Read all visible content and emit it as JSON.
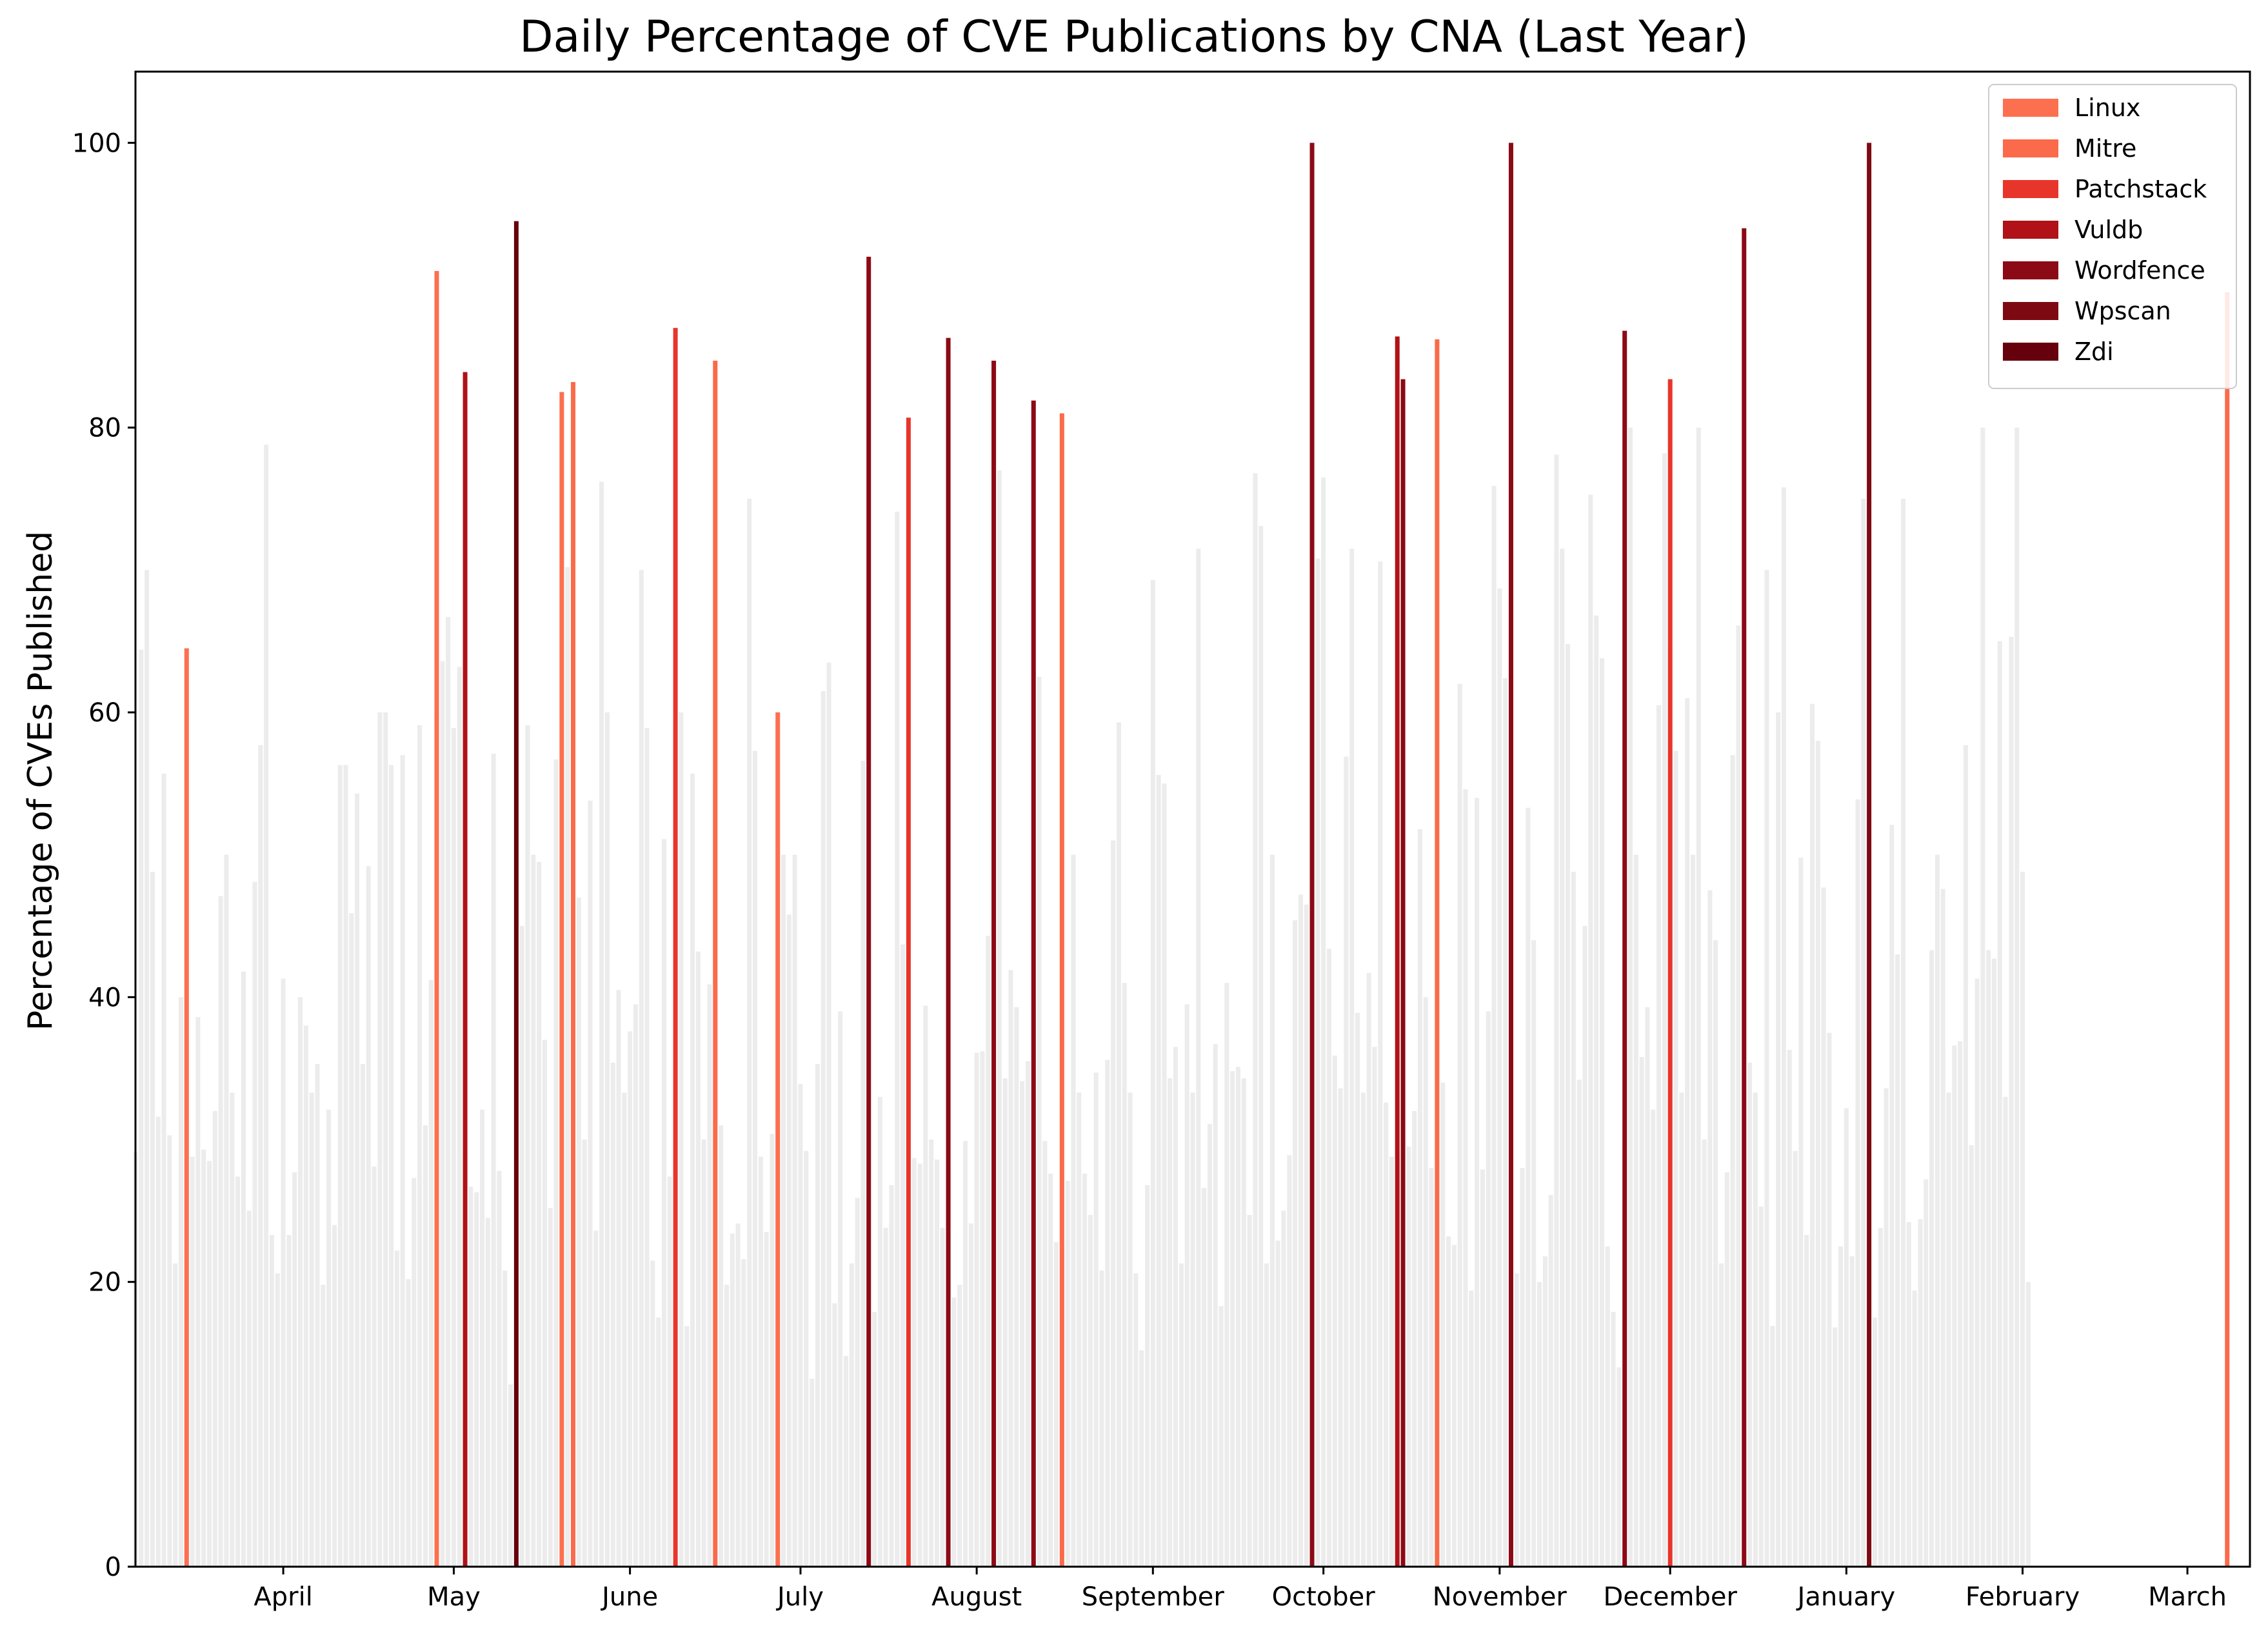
{
  "chart_data": {
    "type": "bar",
    "title": "Daily Percentage of CVE Publications by CNA (Last Year)",
    "xlabel": "",
    "ylabel": "Percentage of CVEs Published",
    "ylim": [
      0,
      105
    ],
    "yticks": [
      0,
      20,
      40,
      60,
      80,
      100
    ],
    "x_start": "2023-03-06",
    "x_end": "2024-03-12",
    "month_ticks": [
      {
        "label": "April",
        "date": "2023-04-01"
      },
      {
        "label": "May",
        "date": "2023-05-01"
      },
      {
        "label": "June",
        "date": "2023-06-01"
      },
      {
        "label": "July",
        "date": "2023-07-01"
      },
      {
        "label": "August",
        "date": "2023-08-01"
      },
      {
        "label": "September",
        "date": "2023-09-01"
      },
      {
        "label": "October",
        "date": "2023-10-01"
      },
      {
        "label": "November",
        "date": "2023-11-01"
      },
      {
        "label": "December",
        "date": "2023-12-01"
      },
      {
        "label": "January",
        "date": "2024-01-01"
      },
      {
        "label": "February",
        "date": "2024-02-01"
      },
      {
        "label": "March",
        "date": "2024-03-01"
      }
    ],
    "legend_position": "top-right",
    "grid": false,
    "background_color": "#ececec",
    "series": [
      {
        "name": "Linux",
        "color": "#fc7050",
        "points": [
          {
            "date": "2023-03-15",
            "value": 64.5
          },
          {
            "date": "2023-04-28",
            "value": 91
          },
          {
            "date": "2023-05-20",
            "value": 82.5
          },
          {
            "date": "2023-06-27",
            "value": 60
          }
        ]
      },
      {
        "name": "Mitre",
        "color": "#fb6a4a",
        "points": [
          {
            "date": "2023-05-22",
            "value": 83.2
          },
          {
            "date": "2023-06-16",
            "value": 84.7
          },
          {
            "date": "2023-08-16",
            "value": 81
          },
          {
            "date": "2023-10-21",
            "value": 86.2
          },
          {
            "date": "2024-03-08",
            "value": 89.5
          }
        ]
      },
      {
        "name": "Patchstack",
        "color": "#e8352b",
        "points": [
          {
            "date": "2023-06-09",
            "value": 87
          },
          {
            "date": "2023-07-20",
            "value": 80.7
          },
          {
            "date": "2023-12-01",
            "value": 83.4
          }
        ]
      },
      {
        "name": "Vuldb",
        "color": "#b01217",
        "points": [
          {
            "date": "2023-05-03",
            "value": 83.9
          },
          {
            "date": "2023-10-14",
            "value": 86.4
          }
        ]
      },
      {
        "name": "Wordfence",
        "color": "#8c0a15",
        "points": [
          {
            "date": "2023-07-13",
            "value": 92
          },
          {
            "date": "2023-07-27",
            "value": 86.3
          },
          {
            "date": "2023-08-04",
            "value": 84.7
          },
          {
            "date": "2023-08-11",
            "value": 81.9
          },
          {
            "date": "2023-09-29",
            "value": 100
          },
          {
            "date": "2023-10-15",
            "value": 83.4
          },
          {
            "date": "2023-11-03",
            "value": 100
          },
          {
            "date": "2023-11-23",
            "value": 86.8
          },
          {
            "date": "2023-12-14",
            "value": 94
          }
        ]
      },
      {
        "name": "Wpscan",
        "color": "#7d0a12",
        "points": [
          {
            "date": "2024-01-05",
            "value": 100
          }
        ]
      },
      {
        "name": "Zdi",
        "color": "#67000d",
        "points": [
          {
            "date": "2023-05-12",
            "value": 94.5
          }
        ]
      }
    ],
    "other_days_values": [
      29.1,
      64.4,
      70,
      48.8,
      31.6,
      55.7,
      30.3,
      21.3,
      40,
      64.5,
      28.8,
      38.6,
      29.3,
      28.5,
      32,
      47.1,
      50,
      33.3,
      27.4,
      41.8,
      25,
      48.1,
      57.7,
      78.8,
      23.3,
      20.6,
      41.3,
      23.3,
      27.7,
      40,
      38,
      33.3,
      35.3,
      19.8,
      32.1,
      24,
      56.3,
      56.3,
      45.9,
      54.3,
      35.3,
      49.2,
      28.1,
      60,
      60,
      56.3,
      22.2,
      57,
      20.2,
      27.3,
      59.1,
      31,
      41.2,
      60,
      63.6,
      66.7,
      58.9,
      63.2,
      29.1,
      26.7,
      26.3,
      32.1,
      24.5,
      57.1,
      27.8,
      20.8,
      12.8,
      39.5,
      45,
      59.1,
      50,
      49.5,
      37,
      25.2,
      56.7,
      50,
      70.2,
      17.8,
      47,
      30,
      53.8,
      23.6,
      76.2,
      60,
      35.4,
      40.5,
      33.3,
      37.6,
      39.5,
      70,
      58.9,
      21.5,
      17.5,
      51.1,
      27.4,
      59.3,
      60,
      16.9,
      55.7,
      43.2,
      30,
      40.9,
      55.5,
      31,
      19.8,
      23.4,
      24.1,
      21.6,
      75,
      57.3,
      28.8,
      23.5,
      30.4,
      31.6,
      50,
      45.8,
      50,
      33.9,
      29.2,
      13.2,
      35.3,
      61.5,
      63.5,
      18.5,
      39,
      14.8,
      21.3,
      25.9,
      56.6,
      44,
      17.9,
      33,
      23.8,
      26.8,
      74.1,
      43.7,
      42.5,
      28.7,
      28.3,
      39.4,
      30,
      28.6,
      23.8,
      27.9,
      18.9,
      19.8,
      29.9,
      24.1,
      36.1,
      36.2,
      44.3,
      26.7,
      77,
      34.3,
      41.9,
      39.3,
      34.1,
      35.5,
      39.3,
      62.5,
      29.9,
      27.6,
      22.8,
      33.3,
      27.1,
      50,
      33.3,
      27.6,
      24.7,
      34.7,
      20.8,
      35.6,
      51,
      59.3,
      41,
      33.3,
      20.6,
      15.2,
      26.8,
      69.3,
      55.6,
      55,
      34.3,
      36.5,
      21.3,
      39.5,
      33.3,
      71.5,
      26.6,
      31.1,
      36.7,
      18.3,
      41,
      34.8,
      35.1,
      34.3,
      24.7,
      76.8,
      73.1,
      21.3,
      50,
      22.9,
      25,
      28.9,
      45.4,
      47.2,
      46.5,
      33.9,
      70.8,
      76.5,
      43.4,
      35.9,
      33.6,
      56.9,
      71.5,
      38.9,
      33.3,
      41.7,
      36.5,
      70.6,
      32.6,
      28.8,
      29.2,
      27,
      29.5,
      32,
      51.8,
      40,
      28,
      26.8,
      34,
      23.2,
      22.6,
      62,
      54.6,
      19.4,
      54,
      27.9,
      39,
      75.9,
      68.7,
      62.4,
      27.4,
      20.6,
      28,
      53.3,
      44,
      20,
      21.8,
      26.1,
      78.1,
      71.5,
      64.8,
      48.8,
      34.2,
      45,
      75.3,
      66.8,
      63.8,
      22.5,
      17.9,
      14,
      20.3,
      80,
      50,
      35.8,
      39.3,
      32.1,
      60.5,
      78.2,
      64.7,
      57.3,
      33.3,
      61,
      50,
      80,
      30,
      47.5,
      44,
      21.3,
      27.7,
      57,
      66.1,
      53.8,
      35.4,
      33.3,
      25.3,
      70,
      16.9,
      60,
      75.8,
      36.3,
      29.2,
      49.8,
      23.3,
      60.6,
      58,
      47.7,
      37.5,
      16.8,
      22.5,
      32.2,
      21.8,
      53.9,
      75,
      37.4,
      17.5,
      23.8,
      33.6,
      52.1,
      43,
      75,
      24.2,
      19.4,
      24.4,
      27.2,
      43.3,
      50,
      47.6,
      33.3,
      36.6,
      36.9,
      57.7,
      29.6,
      41.3,
      80,
      43.3,
      42.7,
      65,
      33,
      65.3,
      80,
      48.8,
      20
    ]
  }
}
